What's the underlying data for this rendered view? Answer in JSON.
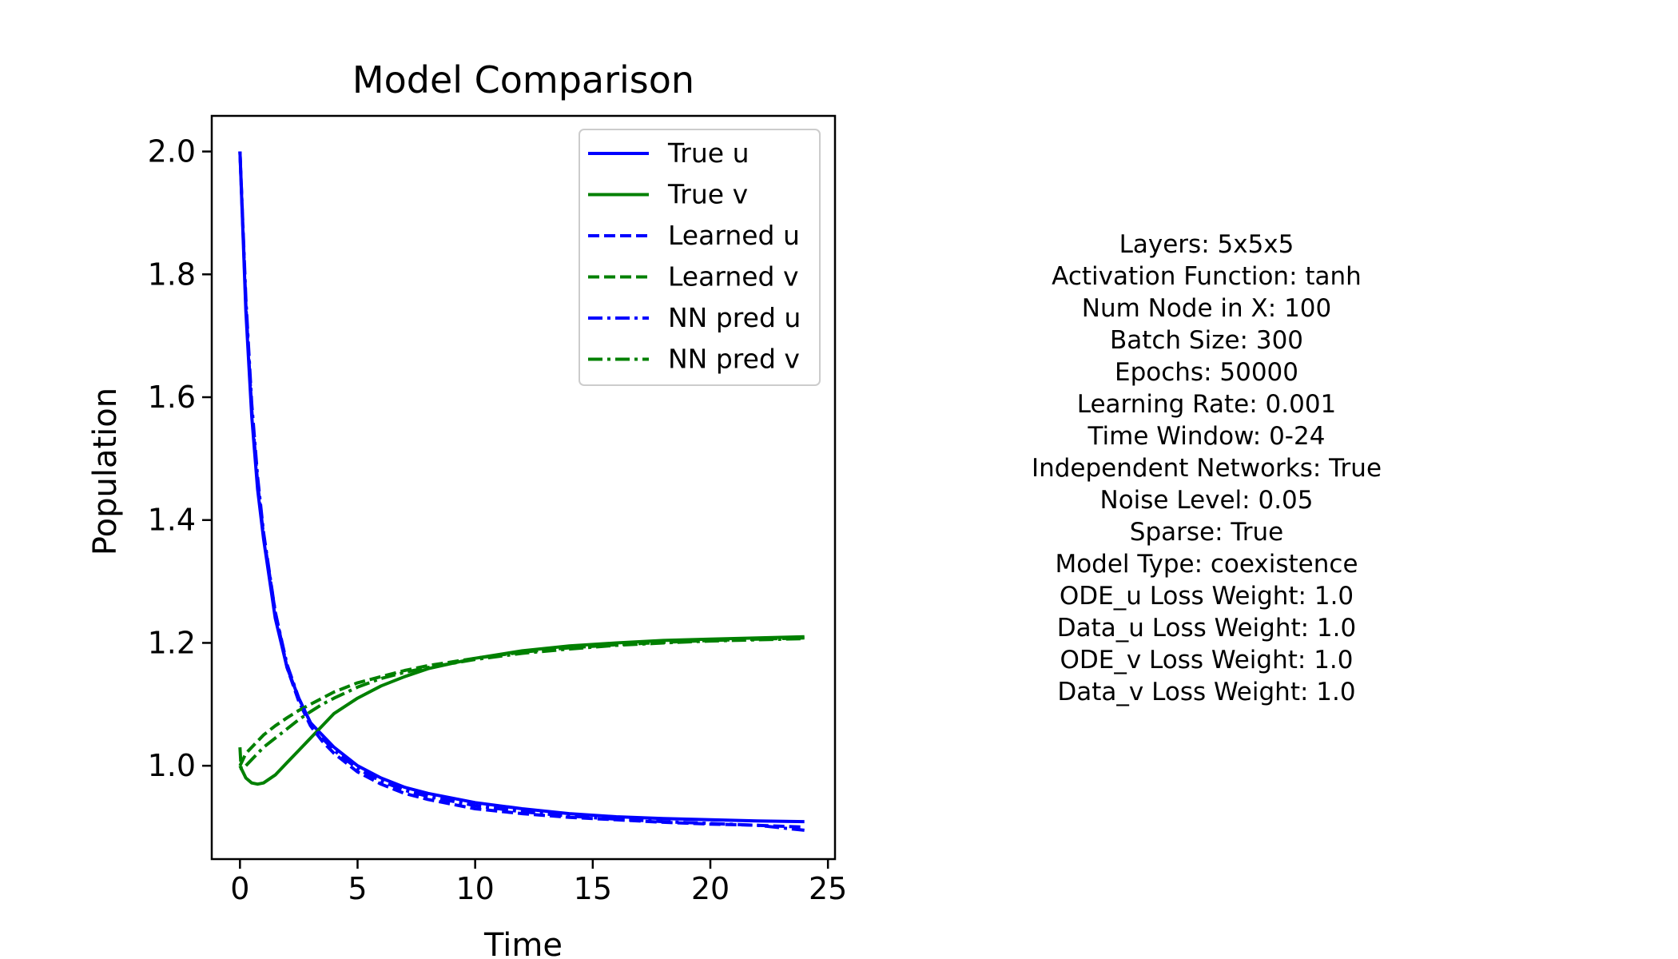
{
  "chart_data": {
    "type": "line",
    "title": "Model Comparison",
    "xlabel": "Time",
    "ylabel": "Population",
    "xlim": [
      -1.2,
      25.3
    ],
    "ylim": [
      0.848,
      2.058
    ],
    "xticks": [
      0,
      5,
      10,
      15,
      20,
      25
    ],
    "yticks": [
      1.0,
      1.2,
      1.4,
      1.6,
      1.8,
      2.0
    ],
    "ytick_labels": [
      "1.0",
      "1.2",
      "1.4",
      "1.6",
      "1.8",
      "2.0"
    ],
    "grid": false,
    "legend_position": "top-right",
    "series": [
      {
        "name": "True u",
        "color": "#0000ff",
        "style": "solid",
        "x": [
          0,
          0.25,
          0.5,
          0.75,
          1,
          1.5,
          2,
          2.5,
          3,
          3.5,
          4,
          5,
          6,
          7,
          8,
          10,
          12,
          14,
          16,
          18,
          20,
          22,
          24
        ],
        "y": [
          2.0,
          1.74,
          1.57,
          1.45,
          1.37,
          1.24,
          1.16,
          1.11,
          1.07,
          1.05,
          1.03,
          1.0,
          0.98,
          0.965,
          0.955,
          0.94,
          0.93,
          0.922,
          0.917,
          0.914,
          0.912,
          0.91,
          0.909
        ]
      },
      {
        "name": "True v",
        "color": "#008000",
        "style": "solid",
        "x": [
          0,
          0.25,
          0.5,
          0.75,
          1,
          1.5,
          2,
          2.5,
          3,
          3.5,
          4,
          5,
          6,
          7,
          8,
          10,
          12,
          14,
          16,
          18,
          20,
          22,
          24
        ],
        "y": [
          1.0,
          0.98,
          0.972,
          0.97,
          0.972,
          0.985,
          1.005,
          1.025,
          1.045,
          1.065,
          1.085,
          1.11,
          1.13,
          1.145,
          1.158,
          1.175,
          1.187,
          1.195,
          1.2,
          1.204,
          1.206,
          1.208,
          1.21
        ]
      },
      {
        "name": "Learned u",
        "color": "#0000ff",
        "style": "dashed",
        "x": [
          0,
          0.25,
          0.5,
          0.75,
          1,
          1.5,
          2,
          2.5,
          3,
          3.5,
          4,
          5,
          6,
          7,
          8,
          10,
          12,
          14,
          16,
          18,
          20,
          22,
          24
        ],
        "y": [
          2.0,
          1.75,
          1.58,
          1.46,
          1.375,
          1.25,
          1.16,
          1.105,
          1.065,
          1.04,
          1.02,
          0.99,
          0.97,
          0.955,
          0.945,
          0.93,
          0.922,
          0.916,
          0.912,
          0.908,
          0.905,
          0.903,
          0.9
        ]
      },
      {
        "name": "Learned v",
        "color": "#008000",
        "style": "dashed",
        "x": [
          0,
          0.25,
          0.5,
          0.75,
          1,
          1.5,
          2,
          2.5,
          3,
          3.5,
          4,
          5,
          6,
          7,
          8,
          10,
          12,
          14,
          16,
          18,
          20,
          22,
          24
        ],
        "y": [
          1.0,
          1.02,
          1.03,
          1.04,
          1.05,
          1.065,
          1.078,
          1.09,
          1.1,
          1.11,
          1.12,
          1.135,
          1.145,
          1.155,
          1.163,
          1.175,
          1.185,
          1.192,
          1.197,
          1.201,
          1.204,
          1.206,
          1.208
        ]
      },
      {
        "name": "NN pred u",
        "color": "#0000ff",
        "style": "dashdot",
        "x": [
          0,
          0.25,
          0.5,
          0.75,
          1,
          1.5,
          2,
          2.5,
          3,
          3.5,
          4,
          5,
          6,
          7,
          8,
          10,
          12,
          14,
          16,
          18,
          20,
          22,
          24
        ],
        "y": [
          2.0,
          1.76,
          1.59,
          1.47,
          1.38,
          1.25,
          1.165,
          1.11,
          1.07,
          1.045,
          1.025,
          0.995,
          0.975,
          0.96,
          0.95,
          0.935,
          0.925,
          0.918,
          0.913,
          0.909,
          0.906,
          0.903,
          0.895
        ]
      },
      {
        "name": "NN pred v",
        "color": "#008000",
        "style": "dashdot",
        "x": [
          0,
          0.05,
          0.25,
          0.5,
          0.75,
          1,
          1.5,
          2,
          2.5,
          3,
          3.5,
          4,
          5,
          6,
          7,
          8,
          10,
          12,
          14,
          16,
          18,
          20,
          22,
          24
        ],
        "y": [
          1.03,
          0.995,
          1.0,
          1.01,
          1.02,
          1.03,
          1.045,
          1.06,
          1.075,
          1.088,
          1.1,
          1.11,
          1.128,
          1.142,
          1.152,
          1.16,
          1.173,
          1.183,
          1.19,
          1.196,
          1.2,
          1.203,
          1.205,
          1.207
        ]
      }
    ]
  },
  "info_panel": {
    "lines": [
      "Layers: 5x5x5",
      "Activation Function: tanh",
      "Num Node in X: 100",
      "Batch Size: 300",
      "Epochs: 50000",
      "Learning Rate: 0.001",
      "Time Window: 0-24",
      "Independent Networks: True",
      "Noise Level: 0.05",
      "Sparse: True",
      "Model Type: coexistence",
      "ODE_u Loss Weight: 1.0",
      "Data_u Loss Weight: 1.0",
      "ODE_v Loss Weight: 1.0",
      "Data_v Loss Weight: 1.0"
    ]
  }
}
